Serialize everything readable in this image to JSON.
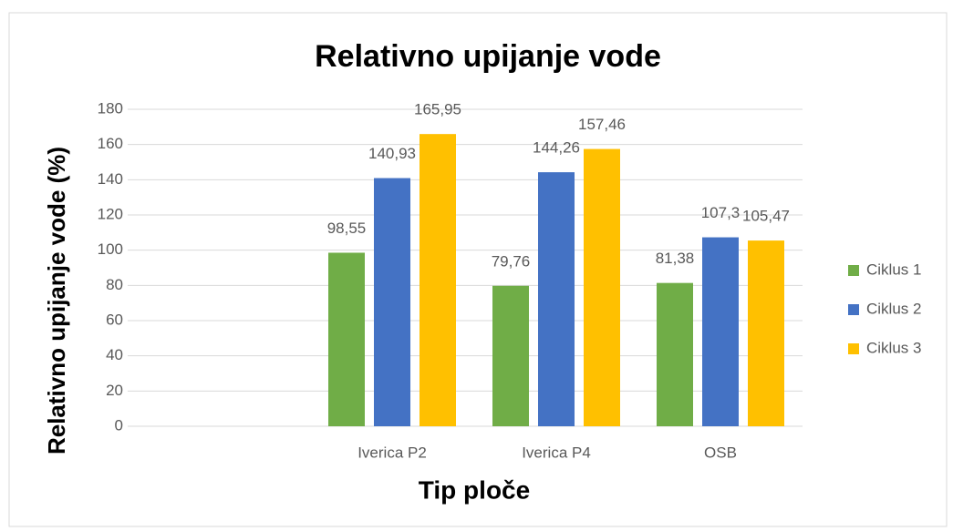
{
  "chart_data": {
    "type": "bar",
    "title": "Relativno upijanje vode",
    "x_label": "Tip ploče",
    "y_label": "Relativno upijanje vode (%)",
    "categories": [
      null,
      "Iverica P2",
      "Iverica P4",
      "OSB"
    ],
    "series": [
      {
        "name": "Ciklus 1",
        "color": "#70ad47",
        "values": [
          null,
          98.55,
          79.76,
          81.38
        ],
        "value_labels": [
          null,
          "98,55",
          "79,76",
          "81,38"
        ]
      },
      {
        "name": "Ciklus 2",
        "color": "#4472c4",
        "values": [
          null,
          140.93,
          144.26,
          107.3
        ],
        "value_labels": [
          null,
          "140,93",
          "144,26",
          "107,3"
        ]
      },
      {
        "name": "Ciklus 3",
        "color": "#ffc000",
        "values": [
          null,
          165.95,
          157.46,
          105.47
        ],
        "value_labels": [
          null,
          "165,95",
          "157,46",
          "105,47"
        ]
      }
    ],
    "ylim": [
      0,
      180
    ],
    "yticks": [
      0,
      20,
      40,
      60,
      80,
      100,
      120,
      140,
      160,
      180
    ],
    "grid": true,
    "legend": "right"
  }
}
